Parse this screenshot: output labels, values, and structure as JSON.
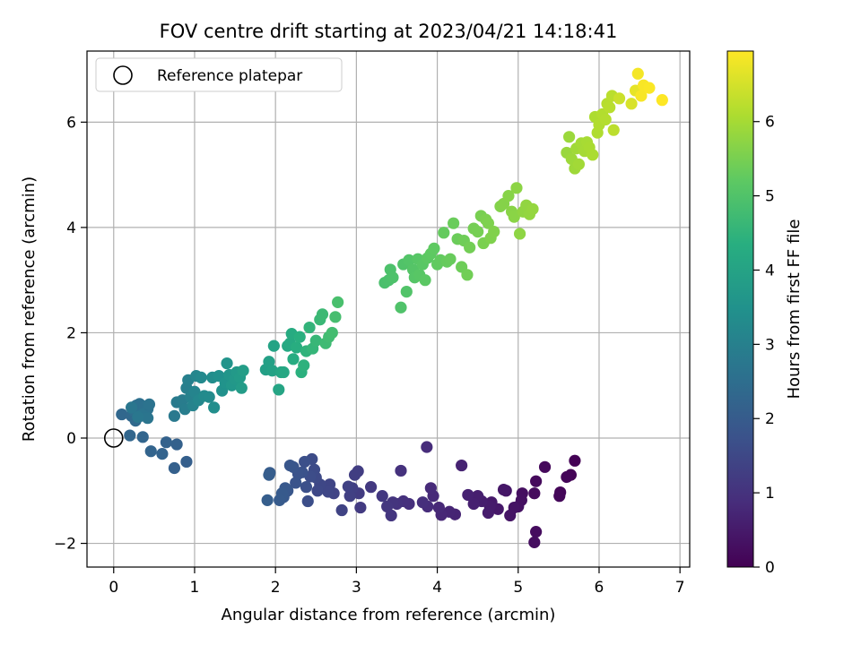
{
  "chart_data": {
    "type": "scatter",
    "title": "FOV centre drift starting at 2023/04/21 14:18:41",
    "xlabel": "Angular distance from reference (arcmin)",
    "ylabel": "Rotation from reference (arcmin)",
    "xlim": [
      -0.33,
      7.12
    ],
    "ylim": [
      -2.45,
      7.35
    ],
    "xticks": [
      0,
      1,
      2,
      3,
      4,
      5,
      6,
      7
    ],
    "yticks": [
      -2,
      0,
      2,
      4,
      6
    ],
    "xtick_labels": [
      "0",
      "1",
      "2",
      "3",
      "4",
      "5",
      "6",
      "7"
    ],
    "ytick_labels": [
      "−2",
      "0",
      "2",
      "4",
      "6"
    ],
    "grid": true,
    "legend": {
      "position": "top-left",
      "entries": [
        "Reference platepar"
      ]
    },
    "reference_point": {
      "x": 0,
      "y": 0
    },
    "colorbar": {
      "label": "Hours from first FF file",
      "colormap": "viridis",
      "range": [
        0,
        6.95
      ],
      "ticks": [
        0,
        1,
        2,
        3,
        4,
        5,
        6
      ],
      "tick_labels": [
        "0",
        "1",
        "2",
        "3",
        "4",
        "5",
        "6"
      ]
    },
    "points": [
      {
        "x": 5.7,
        "y": -0.43,
        "h": 0.02
      },
      {
        "x": 5.65,
        "y": -0.7,
        "h": 0.05
      },
      {
        "x": 5.6,
        "y": -0.74,
        "h": 0.08
      },
      {
        "x": 5.52,
        "y": -1.03,
        "h": 0.1
      },
      {
        "x": 5.51,
        "y": -1.1,
        "h": 0.12
      },
      {
        "x": 5.33,
        "y": -0.55,
        "h": 0.15
      },
      {
        "x": 5.22,
        "y": -0.82,
        "h": 0.18
      },
      {
        "x": 5.2,
        "y": -1.05,
        "h": 0.2
      },
      {
        "x": 5.22,
        "y": -1.78,
        "h": 0.22
      },
      {
        "x": 5.2,
        "y": -1.98,
        "h": 0.24
      },
      {
        "x": 5.05,
        "y": -1.05,
        "h": 0.27
      },
      {
        "x": 5.04,
        "y": -1.18,
        "h": 0.3
      },
      {
        "x": 5.0,
        "y": -1.3,
        "h": 0.32
      },
      {
        "x": 4.95,
        "y": -1.32,
        "h": 0.35
      },
      {
        "x": 4.9,
        "y": -1.47,
        "h": 0.38
      },
      {
        "x": 4.85,
        "y": -1.0,
        "h": 0.4
      },
      {
        "x": 4.82,
        "y": -0.98,
        "h": 0.43
      },
      {
        "x": 4.75,
        "y": -1.35,
        "h": 0.46
      },
      {
        "x": 4.67,
        "y": -1.22,
        "h": 0.48
      },
      {
        "x": 4.65,
        "y": -1.3,
        "h": 0.51
      },
      {
        "x": 4.63,
        "y": -1.42,
        "h": 0.54
      },
      {
        "x": 4.55,
        "y": -1.2,
        "h": 0.56
      },
      {
        "x": 4.5,
        "y": -1.1,
        "h": 0.59
      },
      {
        "x": 4.45,
        "y": -1.25,
        "h": 0.62
      },
      {
        "x": 4.38,
        "y": -1.08,
        "h": 0.64
      },
      {
        "x": 4.3,
        "y": -0.52,
        "h": 0.67
      },
      {
        "x": 4.22,
        "y": -1.45,
        "h": 0.7
      },
      {
        "x": 4.15,
        "y": -1.4,
        "h": 0.72
      },
      {
        "x": 4.05,
        "y": -1.46,
        "h": 0.75
      },
      {
        "x": 4.02,
        "y": -1.32,
        "h": 0.78
      },
      {
        "x": 3.95,
        "y": -1.1,
        "h": 0.8
      },
      {
        "x": 3.92,
        "y": -0.95,
        "h": 0.83
      },
      {
        "x": 3.88,
        "y": -1.3,
        "h": 0.86
      },
      {
        "x": 3.87,
        "y": -0.17,
        "h": 0.88
      },
      {
        "x": 3.82,
        "y": -1.22,
        "h": 0.91
      },
      {
        "x": 3.65,
        "y": -1.25,
        "h": 0.94
      },
      {
        "x": 3.58,
        "y": -1.2,
        "h": 0.96
      },
      {
        "x": 3.55,
        "y": -0.62,
        "h": 0.99
      },
      {
        "x": 3.5,
        "y": -1.25,
        "h": 1.02
      },
      {
        "x": 3.45,
        "y": -1.22,
        "h": 1.05
      },
      {
        "x": 3.43,
        "y": -1.47,
        "h": 1.08
      },
      {
        "x": 3.38,
        "y": -1.3,
        "h": 1.1
      },
      {
        "x": 3.32,
        "y": -1.1,
        "h": 1.13
      },
      {
        "x": 3.18,
        "y": -0.93,
        "h": 1.16
      },
      {
        "x": 3.05,
        "y": -1.32,
        "h": 1.19
      },
      {
        "x": 3.03,
        "y": -1.05,
        "h": 1.21
      },
      {
        "x": 3.02,
        "y": -0.63,
        "h": 1.24
      },
      {
        "x": 2.98,
        "y": -0.7,
        "h": 1.27
      },
      {
        "x": 2.95,
        "y": -0.95,
        "h": 1.3
      },
      {
        "x": 2.92,
        "y": -1.1,
        "h": 1.32
      },
      {
        "x": 2.9,
        "y": -0.92,
        "h": 1.35
      },
      {
        "x": 2.82,
        "y": -1.37,
        "h": 1.38
      },
      {
        "x": 2.72,
        "y": -1.05,
        "h": 1.4
      },
      {
        "x": 2.67,
        "y": -0.88,
        "h": 1.43
      },
      {
        "x": 2.65,
        "y": -1.02,
        "h": 1.46
      },
      {
        "x": 2.55,
        "y": -0.88,
        "h": 1.49
      },
      {
        "x": 2.52,
        "y": -1.0,
        "h": 1.51
      },
      {
        "x": 2.5,
        "y": -0.75,
        "h": 1.54
      },
      {
        "x": 2.48,
        "y": -0.6,
        "h": 1.57
      },
      {
        "x": 2.45,
        "y": -0.4,
        "h": 1.6
      },
      {
        "x": 2.43,
        "y": -0.73,
        "h": 1.62
      },
      {
        "x": 2.4,
        "y": -1.2,
        "h": 1.65
      },
      {
        "x": 2.38,
        "y": -0.93,
        "h": 1.68
      },
      {
        "x": 2.36,
        "y": -0.45,
        "h": 1.7
      },
      {
        "x": 2.33,
        "y": -0.65,
        "h": 1.73
      },
      {
        "x": 2.28,
        "y": -0.68,
        "h": 1.76
      },
      {
        "x": 2.25,
        "y": -0.85,
        "h": 1.78
      },
      {
        "x": 2.22,
        "y": -0.55,
        "h": 1.81
      },
      {
        "x": 2.18,
        "y": -0.52,
        "h": 1.84
      },
      {
        "x": 2.15,
        "y": -1.0,
        "h": 1.87
      },
      {
        "x": 2.12,
        "y": -0.95,
        "h": 1.89
      },
      {
        "x": 2.1,
        "y": -1.12,
        "h": 1.92
      },
      {
        "x": 2.08,
        "y": -1.05,
        "h": 1.95
      },
      {
        "x": 2.05,
        "y": -1.18,
        "h": 1.97
      },
      {
        "x": 1.93,
        "y": -0.66,
        "h": 2.0
      },
      {
        "x": 1.92,
        "y": -0.7,
        "h": 2.03
      },
      {
        "x": 1.9,
        "y": -1.18,
        "h": 2.05
      },
      {
        "x": 0.9,
        "y": -0.45,
        "h": 2.08
      },
      {
        "x": 0.75,
        "y": -0.57,
        "h": 2.11
      },
      {
        "x": 0.78,
        "y": -0.12,
        "h": 2.14
      },
      {
        "x": 0.65,
        "y": -0.08,
        "h": 2.16
      },
      {
        "x": 0.6,
        "y": -0.3,
        "h": 2.19
      },
      {
        "x": 0.46,
        "y": -0.25,
        "h": 2.22
      },
      {
        "x": 0.36,
        "y": 0.02,
        "h": 2.24
      },
      {
        "x": 0.2,
        "y": 0.05,
        "h": 2.27
      },
      {
        "x": 0.1,
        "y": 0.45,
        "h": 2.3
      },
      {
        "x": 0.22,
        "y": 0.42,
        "h": 2.33
      },
      {
        "x": 0.27,
        "y": 0.33,
        "h": 2.36
      },
      {
        "x": 0.3,
        "y": 0.55,
        "h": 2.4
      },
      {
        "x": 0.33,
        "y": 0.42,
        "h": 2.43
      },
      {
        "x": 0.25,
        "y": 0.52,
        "h": 2.46
      },
      {
        "x": 0.28,
        "y": 0.62,
        "h": 2.5
      },
      {
        "x": 0.32,
        "y": 0.65,
        "h": 2.53
      },
      {
        "x": 0.38,
        "y": 0.6,
        "h": 2.56
      },
      {
        "x": 0.42,
        "y": 0.55,
        "h": 2.6
      },
      {
        "x": 0.44,
        "y": 0.64,
        "h": 2.64
      },
      {
        "x": 0.35,
        "y": 0.45,
        "h": 2.67
      },
      {
        "x": 0.42,
        "y": 0.38,
        "h": 2.7
      },
      {
        "x": 0.22,
        "y": 0.58,
        "h": 2.73
      },
      {
        "x": 0.3,
        "y": 0.4,
        "h": 2.76
      },
      {
        "x": 0.75,
        "y": 0.42,
        "h": 2.8
      },
      {
        "x": 0.78,
        "y": 0.68,
        "h": 2.84
      },
      {
        "x": 0.85,
        "y": 0.72,
        "h": 2.88
      },
      {
        "x": 0.88,
        "y": 0.55,
        "h": 2.92
      },
      {
        "x": 0.9,
        "y": 0.95,
        "h": 2.96
      },
      {
        "x": 0.92,
        "y": 1.1,
        "h": 3.0
      },
      {
        "x": 0.95,
        "y": 0.78,
        "h": 3.04
      },
      {
        "x": 0.98,
        "y": 0.62,
        "h": 3.08
      },
      {
        "x": 1.0,
        "y": 0.88,
        "h": 3.12
      },
      {
        "x": 1.02,
        "y": 1.18,
        "h": 3.16
      },
      {
        "x": 1.05,
        "y": 0.72,
        "h": 3.2
      },
      {
        "x": 1.08,
        "y": 1.15,
        "h": 3.24
      },
      {
        "x": 1.12,
        "y": 0.8,
        "h": 3.28
      },
      {
        "x": 1.18,
        "y": 0.78,
        "h": 3.32
      },
      {
        "x": 1.22,
        "y": 1.15,
        "h": 3.36
      },
      {
        "x": 1.24,
        "y": 0.58,
        "h": 3.4
      },
      {
        "x": 1.3,
        "y": 1.18,
        "h": 3.44
      },
      {
        "x": 1.34,
        "y": 0.9,
        "h": 3.48
      },
      {
        "x": 1.38,
        "y": 1.05,
        "h": 3.52
      },
      {
        "x": 1.4,
        "y": 1.42,
        "h": 3.56
      },
      {
        "x": 1.43,
        "y": 1.2,
        "h": 3.6
      },
      {
        "x": 1.46,
        "y": 1.0,
        "h": 3.64
      },
      {
        "x": 1.5,
        "y": 1.12,
        "h": 3.68
      },
      {
        "x": 1.52,
        "y": 1.25,
        "h": 3.72
      },
      {
        "x": 1.56,
        "y": 1.15,
        "h": 3.76
      },
      {
        "x": 1.58,
        "y": 0.95,
        "h": 3.8
      },
      {
        "x": 1.6,
        "y": 1.28,
        "h": 3.84
      },
      {
        "x": 1.88,
        "y": 1.3,
        "h": 3.88
      },
      {
        "x": 1.92,
        "y": 1.45,
        "h": 3.92
      },
      {
        "x": 1.96,
        "y": 1.28,
        "h": 3.96
      },
      {
        "x": 1.98,
        "y": 1.75,
        "h": 4.0
      },
      {
        "x": 2.04,
        "y": 0.92,
        "h": 4.04
      },
      {
        "x": 2.07,
        "y": 1.25,
        "h": 4.08
      },
      {
        "x": 2.1,
        "y": 1.25,
        "h": 4.12
      },
      {
        "x": 2.15,
        "y": 1.75,
        "h": 4.16
      },
      {
        "x": 2.18,
        "y": 1.8,
        "h": 4.2
      },
      {
        "x": 2.2,
        "y": 1.98,
        "h": 4.24
      },
      {
        "x": 2.22,
        "y": 1.5,
        "h": 4.28
      },
      {
        "x": 2.26,
        "y": 1.72,
        "h": 4.32
      },
      {
        "x": 2.3,
        "y": 1.92,
        "h": 4.36
      },
      {
        "x": 2.32,
        "y": 1.25,
        "h": 4.4
      },
      {
        "x": 2.35,
        "y": 1.38,
        "h": 4.44
      },
      {
        "x": 2.38,
        "y": 1.65,
        "h": 4.48
      },
      {
        "x": 2.42,
        "y": 2.1,
        "h": 4.52
      },
      {
        "x": 2.46,
        "y": 1.7,
        "h": 4.56
      },
      {
        "x": 2.5,
        "y": 1.85,
        "h": 4.6
      },
      {
        "x": 2.55,
        "y": 2.25,
        "h": 4.64
      },
      {
        "x": 2.58,
        "y": 2.35,
        "h": 4.68
      },
      {
        "x": 2.62,
        "y": 1.8,
        "h": 4.72
      },
      {
        "x": 2.66,
        "y": 1.92,
        "h": 4.76
      },
      {
        "x": 2.7,
        "y": 2.0,
        "h": 4.8
      },
      {
        "x": 2.74,
        "y": 2.3,
        "h": 4.84
      },
      {
        "x": 2.77,
        "y": 2.58,
        "h": 4.88
      },
      {
        "x": 3.35,
        "y": 2.95,
        "h": 4.9
      },
      {
        "x": 3.4,
        "y": 3.0,
        "h": 4.92
      },
      {
        "x": 3.42,
        "y": 3.2,
        "h": 4.94
      },
      {
        "x": 3.45,
        "y": 3.05,
        "h": 4.96
      },
      {
        "x": 3.55,
        "y": 2.48,
        "h": 4.98
      },
      {
        "x": 3.58,
        "y": 3.3,
        "h": 5.0
      },
      {
        "x": 3.62,
        "y": 2.78,
        "h": 5.02
      },
      {
        "x": 3.65,
        "y": 3.38,
        "h": 5.04
      },
      {
        "x": 3.7,
        "y": 3.2,
        "h": 5.06
      },
      {
        "x": 3.72,
        "y": 3.05,
        "h": 5.08
      },
      {
        "x": 3.76,
        "y": 3.4,
        "h": 5.1
      },
      {
        "x": 3.78,
        "y": 3.1,
        "h": 5.12
      },
      {
        "x": 3.82,
        "y": 3.3,
        "h": 5.14
      },
      {
        "x": 3.85,
        "y": 3.0,
        "h": 5.16
      },
      {
        "x": 3.88,
        "y": 3.42,
        "h": 5.18
      },
      {
        "x": 3.92,
        "y": 3.5,
        "h": 5.2
      },
      {
        "x": 3.96,
        "y": 3.6,
        "h": 5.22
      },
      {
        "x": 4.0,
        "y": 3.3,
        "h": 5.24
      },
      {
        "x": 4.04,
        "y": 3.38,
        "h": 5.26
      },
      {
        "x": 4.08,
        "y": 3.9,
        "h": 5.28
      },
      {
        "x": 4.12,
        "y": 3.35,
        "h": 5.3
      },
      {
        "x": 4.16,
        "y": 3.4,
        "h": 5.32
      },
      {
        "x": 4.2,
        "y": 4.08,
        "h": 5.34
      },
      {
        "x": 4.25,
        "y": 3.78,
        "h": 5.36
      },
      {
        "x": 4.3,
        "y": 3.25,
        "h": 5.38
      },
      {
        "x": 4.33,
        "y": 3.75,
        "h": 5.4
      },
      {
        "x": 4.37,
        "y": 3.1,
        "h": 5.42
      },
      {
        "x": 4.4,
        "y": 3.62,
        "h": 5.44
      },
      {
        "x": 4.45,
        "y": 3.98,
        "h": 5.46
      },
      {
        "x": 4.5,
        "y": 3.92,
        "h": 5.48
      },
      {
        "x": 4.54,
        "y": 4.22,
        "h": 5.5
      },
      {
        "x": 4.57,
        "y": 3.7,
        "h": 5.52
      },
      {
        "x": 4.6,
        "y": 4.15,
        "h": 5.54
      },
      {
        "x": 4.63,
        "y": 4.08,
        "h": 5.56
      },
      {
        "x": 4.66,
        "y": 3.8,
        "h": 5.58
      },
      {
        "x": 4.7,
        "y": 3.92,
        "h": 5.6
      },
      {
        "x": 4.78,
        "y": 4.4,
        "h": 5.62
      },
      {
        "x": 4.82,
        "y": 4.45,
        "h": 5.64
      },
      {
        "x": 4.88,
        "y": 4.6,
        "h": 5.66
      },
      {
        "x": 4.92,
        "y": 4.3,
        "h": 5.68
      },
      {
        "x": 4.95,
        "y": 4.2,
        "h": 5.7
      },
      {
        "x": 4.98,
        "y": 4.75,
        "h": 5.72
      },
      {
        "x": 5.02,
        "y": 3.88,
        "h": 5.74
      },
      {
        "x": 5.06,
        "y": 4.3,
        "h": 5.76
      },
      {
        "x": 5.1,
        "y": 4.42,
        "h": 5.78
      },
      {
        "x": 5.14,
        "y": 4.25,
        "h": 5.8
      },
      {
        "x": 5.18,
        "y": 4.35,
        "h": 5.82
      },
      {
        "x": 5.6,
        "y": 5.42,
        "h": 5.86
      },
      {
        "x": 5.63,
        "y": 5.72,
        "h": 5.88
      },
      {
        "x": 5.66,
        "y": 5.3,
        "h": 5.9
      },
      {
        "x": 5.7,
        "y": 5.12,
        "h": 5.92
      },
      {
        "x": 5.72,
        "y": 5.5,
        "h": 5.94
      },
      {
        "x": 5.75,
        "y": 5.2,
        "h": 5.96
      },
      {
        "x": 5.78,
        "y": 5.6,
        "h": 5.98
      },
      {
        "x": 5.82,
        "y": 5.45,
        "h": 6.0
      },
      {
        "x": 5.85,
        "y": 5.62,
        "h": 6.02
      },
      {
        "x": 5.88,
        "y": 5.52,
        "h": 6.04
      },
      {
        "x": 5.92,
        "y": 5.38,
        "h": 6.06
      },
      {
        "x": 5.95,
        "y": 6.1,
        "h": 6.08
      },
      {
        "x": 5.98,
        "y": 5.8,
        "h": 6.1
      },
      {
        "x": 6.0,
        "y": 5.95,
        "h": 6.12
      },
      {
        "x": 6.04,
        "y": 6.15,
        "h": 6.14
      },
      {
        "x": 6.08,
        "y": 6.05,
        "h": 6.16
      },
      {
        "x": 6.1,
        "y": 6.35,
        "h": 6.18
      },
      {
        "x": 6.13,
        "y": 6.28,
        "h": 6.2
      },
      {
        "x": 6.16,
        "y": 6.5,
        "h": 6.22
      },
      {
        "x": 6.18,
        "y": 5.85,
        "h": 6.24
      },
      {
        "x": 6.25,
        "y": 6.45,
        "h": 6.4
      },
      {
        "x": 6.4,
        "y": 6.35,
        "h": 6.55
      },
      {
        "x": 6.45,
        "y": 6.6,
        "h": 6.7
      },
      {
        "x": 6.48,
        "y": 6.92,
        "h": 6.85
      },
      {
        "x": 6.52,
        "y": 6.5,
        "h": 6.88
      },
      {
        "x": 6.55,
        "y": 6.7,
        "h": 6.9
      },
      {
        "x": 6.62,
        "y": 6.65,
        "h": 6.92
      },
      {
        "x": 6.78,
        "y": 6.42,
        "h": 6.95
      }
    ]
  }
}
